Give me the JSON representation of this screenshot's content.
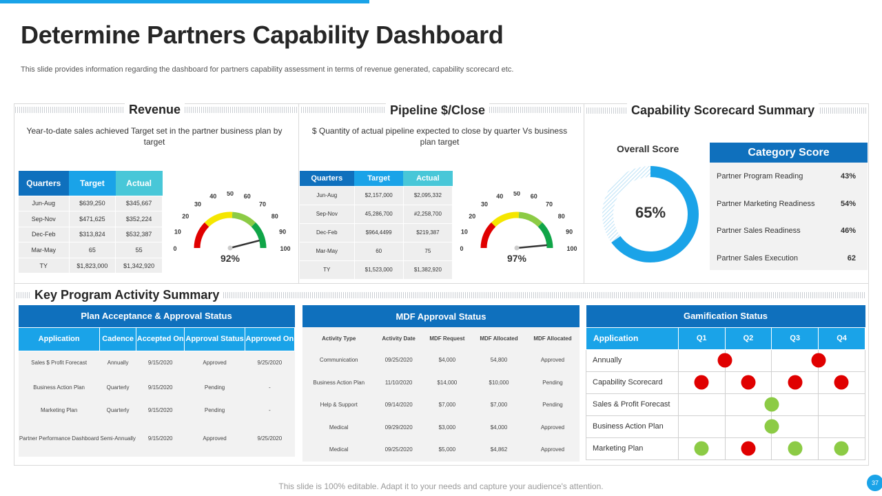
{
  "header": {
    "title": "Determine Partners Capability Dashboard",
    "subtitle": "This slide provides information regarding the dashboard for partners capability assessment in terms of revenue generated, capability scorecard etc."
  },
  "revenue": {
    "title": "Revenue",
    "description": "Year-to-date sales achieved Target set in the partner business plan by target",
    "columns": [
      "Quarters",
      "Target",
      "Actual"
    ],
    "rows": [
      [
        "Jun-Aug",
        "$639,250",
        "$345,667"
      ],
      [
        "Sep-Nov",
        "$471,625",
        "$352,224"
      ],
      [
        "Dec-Feb",
        "$313,824",
        "$532,387"
      ],
      [
        "Mar-May",
        "65",
        "55"
      ],
      [
        "TY",
        "$1,823,000",
        "$1,342,920"
      ]
    ],
    "gauge": {
      "value_label": "92%",
      "value": 92,
      "ticks": [
        "0",
        "10",
        "20",
        "30",
        "40",
        "50",
        "60",
        "70",
        "80",
        "90",
        "100"
      ]
    }
  },
  "pipeline": {
    "title": "Pipeline $/Close",
    "description": "$ Quantity of actual pipeline expected to close by quarter Vs business plan target",
    "columns": [
      "Quarters",
      "Target",
      "Actual"
    ],
    "rows": [
      [
        "Jun-Aug",
        "$2,157,000",
        "$2,095,332"
      ],
      [
        "Sep-Nov",
        "45,286,700",
        "#2,258,700"
      ],
      [
        "Dec-Feb",
        "$964,4499",
        "$219,387"
      ],
      [
        "Mar-May",
        "60",
        "75"
      ],
      [
        "TY",
        "$1,523,000",
        "$1,382,920"
      ]
    ],
    "gauge": {
      "value_label": "97%",
      "value": 97,
      "ticks": [
        "0",
        "10",
        "20",
        "30",
        "40",
        "50",
        "60",
        "70",
        "80",
        "90",
        "100"
      ]
    }
  },
  "scorecard": {
    "title": "Capability Scorecard Summary",
    "overall_label": "Overall Score",
    "overall_value": "65%",
    "overall_fraction": 0.65,
    "category_title": "Category Score",
    "categories": [
      {
        "name": "Partner Program Reading",
        "value": "43%"
      },
      {
        "name": "Partner Marketing Readiness",
        "value": "54%"
      },
      {
        "name": "Partner Sales Readiness",
        "value": "46%"
      },
      {
        "name": "Partner Sales Execution",
        "value": "62"
      }
    ]
  },
  "key_program": {
    "title": "Key Program Activity Summary",
    "plan": {
      "title": "Plan Acceptance & Approval Status",
      "columns": [
        "Application",
        "Cadence",
        "Accepted On",
        "Approval Status",
        "Approved On"
      ],
      "rows": [
        [
          "Sales $ Profit Forecast",
          "Annually",
          "9/15/2020",
          "Approved",
          "9/25/2020"
        ],
        [
          "Business Action Plan",
          "Quarterly",
          "9/15/2020",
          "Pending",
          "-"
        ],
        [
          "Marketing Plan",
          "Quarterly",
          "9/15/2020",
          "Pending",
          "-"
        ],
        [
          "Partner Performance Dashboard",
          "Semi-Annually",
          "9/15/2020",
          "Approved",
          "9/25/2020"
        ]
      ]
    },
    "mdf": {
      "title": "MDF Approval Status",
      "columns": [
        "Activity Type",
        "Activity Date",
        "MDF Request",
        "MDF Allocated",
        "MDF Allocated"
      ],
      "rows": [
        [
          "Communication",
          "09/25/2020",
          "$4,000",
          "54,800",
          "Approved"
        ],
        [
          "Business Action Plan",
          "11/10/2020",
          "$14,000",
          "$10,000",
          "Pending"
        ],
        [
          "Help & Support",
          "09/14/2020",
          "$7,000",
          "$7,000",
          "Pending"
        ],
        [
          "Medical",
          "09/29/2020",
          "$3,000",
          "$4,000",
          "Approved"
        ],
        [
          "Medical",
          "09/25/2020",
          "$5,000",
          "$4,862",
          "Approved"
        ]
      ]
    },
    "gamification": {
      "title": "Gamification Status",
      "columns": [
        "Application",
        "Q1",
        "Q2",
        "Q3",
        "Q4"
      ],
      "rows": [
        {
          "name": "Annually",
          "dots": [
            [
              "q1q2",
              "red"
            ],
            [
              "q3q4",
              "red"
            ]
          ]
        },
        {
          "name": "Capability Scorecard",
          "dots": [
            [
              "q1",
              "red"
            ],
            [
              "q2",
              "red"
            ],
            [
              "q3",
              "red"
            ],
            [
              "q4",
              "red"
            ]
          ]
        },
        {
          "name": "Sales & Profit Forecast",
          "dots": [
            [
              "q2q3",
              "green"
            ]
          ]
        },
        {
          "name": "Business Action Plan",
          "dots": [
            [
              "q2q3",
              "green"
            ]
          ]
        },
        {
          "name": "Marketing Plan",
          "dots": [
            [
              "q1",
              "green"
            ],
            [
              "q2",
              "red"
            ],
            [
              "q3",
              "green"
            ],
            [
              "q4",
              "green"
            ]
          ]
        }
      ]
    }
  },
  "footer": {
    "text": "This slide is 100% editable. Adapt it to your needs and capture your audience's attention.",
    "page_number": "37"
  },
  "colors": {
    "accent": "#1aa3e8",
    "dark_blue": "#0f70bd",
    "teal": "#48c7d8",
    "red": "#e00000",
    "green": "#8ccb45"
  }
}
